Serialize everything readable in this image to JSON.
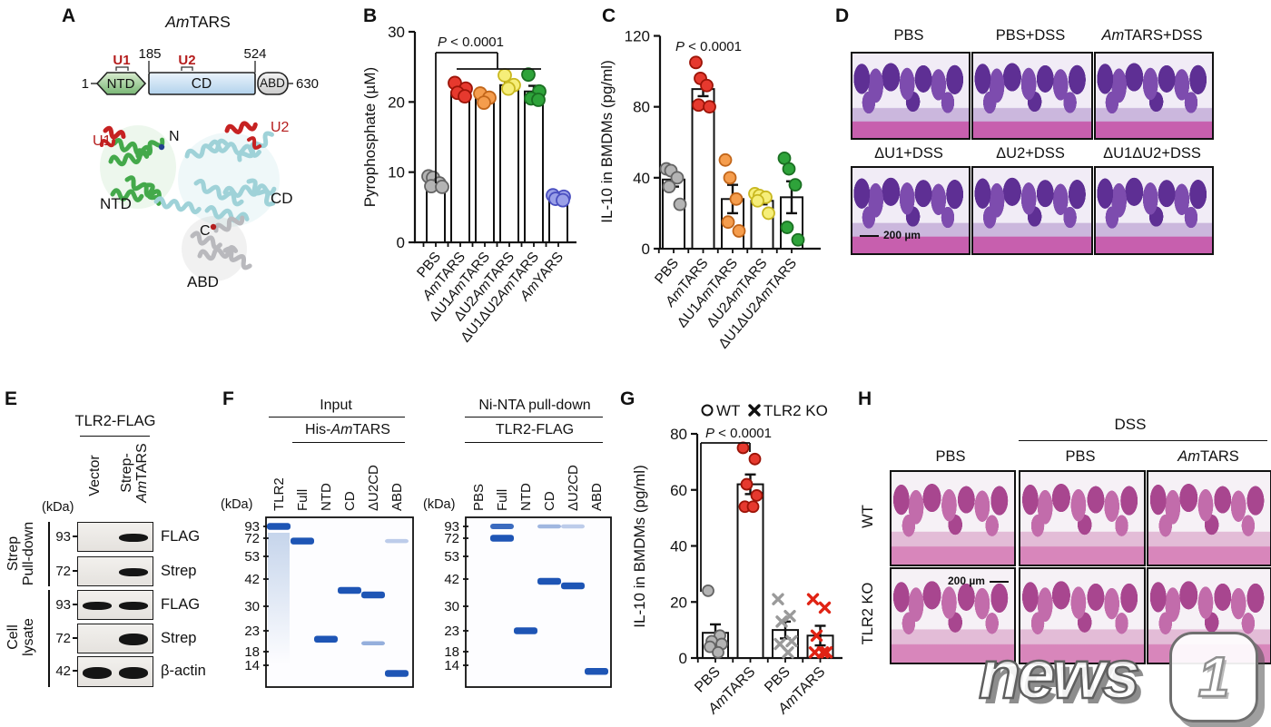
{
  "panel_a": {
    "label": "A",
    "title": [
      {
        "i": "Am"
      },
      "TARS"
    ],
    "u1": "U1",
    "u2": "U2",
    "res_start": "1",
    "res_185": "185",
    "res_524": "524",
    "res_end": "630",
    "ntd": "NTD",
    "cd": "CD",
    "abd": "ABD",
    "struct": {
      "u1": "U1",
      "n": "N",
      "u2": "U2",
      "ntd": "NTD",
      "cd": "CD",
      "c": "C",
      "abd": "ABD"
    }
  },
  "panel_b": {
    "label": "B"
  },
  "panel_c": {
    "label": "C"
  },
  "panel_d": {
    "label": "D",
    "titles": [
      [
        "PBS"
      ],
      [
        "PBS+DSS"
      ],
      [
        {
          "i": "Am"
        },
        "TARS+DSS"
      ],
      [
        "ΔU1+DSS"
      ],
      [
        "ΔU2+DSS"
      ],
      [
        "ΔU1ΔU2+DSS"
      ]
    ],
    "scale_bar": "200 µm"
  },
  "panel_e": {
    "label": "E",
    "header": "TLR2-FLAG",
    "kda": "(kDa)",
    "lanes": {
      "vector": "Vector",
      "strep_line1": "Strep-",
      "strep_line2": [
        {
          "i": "Am"
        },
        "TARS"
      ]
    },
    "groups": [
      [
        "Strep",
        "Pull-down"
      ],
      [
        "Cell",
        "lysate"
      ]
    ],
    "strips": [
      {
        "marker": "93",
        "antibody": "FLAG",
        "bands": [
          0,
          1
        ]
      },
      {
        "marker": "72",
        "antibody": "Strep",
        "bands": [
          0,
          1
        ]
      },
      {
        "marker": "93",
        "antibody": "FLAG",
        "bands": [
          1,
          1
        ]
      },
      {
        "marker": "72",
        "antibody": "Strep",
        "bands": [
          0,
          1.4
        ]
      },
      {
        "marker": "42",
        "antibody": "β-actin",
        "bands": [
          1.2,
          1.2
        ]
      }
    ]
  },
  "panel_f": {
    "label": "F",
    "kda": "(kDa)",
    "gels": [
      {
        "header1": "Input",
        "header2": [
          "His-",
          {
            "i": "Am"
          },
          "TARS"
        ],
        "lanes": [
          "TLR2",
          "Full",
          "NTD",
          "CD",
          "ΔU2CD",
          "ABD"
        ],
        "markers": [
          93,
          72,
          53,
          42,
          30,
          23,
          18,
          14
        ],
        "bands": [
          {
            "lane": 0,
            "kda": 93,
            "intensity": 1,
            "smear": true
          },
          {
            "lane": 1,
            "kda": 69,
            "intensity": 1
          },
          {
            "lane": 2,
            "kda": 21,
            "intensity": 1
          },
          {
            "lane": 3,
            "kda": 37,
            "intensity": 1
          },
          {
            "lane": 4,
            "kda": 35,
            "intensity": 1
          },
          {
            "lane": 4,
            "kda": 20,
            "intensity": 0.35
          },
          {
            "lane": 5,
            "kda": 12,
            "intensity": 1
          },
          {
            "lane": 5,
            "kda": 69,
            "intensity": 0.15
          }
        ]
      },
      {
        "header1": "Ni-NTA pull-down",
        "header2": "TLR2-FLAG",
        "lanes": [
          "PBS",
          "Full",
          "NTD",
          "CD",
          "ΔU2CD",
          "ABD"
        ],
        "markers": [
          93,
          72,
          53,
          42,
          30,
          23,
          18,
          14
        ],
        "bands": [
          {
            "lane": 1,
            "kda": 93,
            "intensity": 0.8
          },
          {
            "lane": 1,
            "kda": 72,
            "intensity": 1
          },
          {
            "lane": 2,
            "kda": 23,
            "intensity": 1
          },
          {
            "lane": 3,
            "kda": 41,
            "intensity": 1
          },
          {
            "lane": 3,
            "kda": 93,
            "intensity": 0.3
          },
          {
            "lane": 4,
            "kda": 39,
            "intensity": 1
          },
          {
            "lane": 4,
            "kda": 93,
            "intensity": 0.15
          },
          {
            "lane": 5,
            "kda": 12.5,
            "intensity": 1
          }
        ]
      }
    ]
  },
  "panel_g": {
    "label": "G"
  },
  "panel_h": {
    "label": "H",
    "dss": "DSS",
    "col_titles": [
      [
        "PBS"
      ],
      [
        "PBS"
      ],
      [
        {
          "i": "Am"
        },
        "TARS"
      ]
    ],
    "row_labels": [
      "WT",
      "TLR2 KO"
    ],
    "scale_bar": "200 µm"
  },
  "watermark": {
    "news": "news",
    "one": "1"
  },
  "chart_data": [
    {
      "id": "B",
      "type": "bar",
      "title": "",
      "xlabel": "",
      "ylabel": "Pyrophosphate (µM)",
      "ylim": [
        0,
        30
      ],
      "yticks": [
        0,
        10,
        20,
        30
      ],
      "p_label": [
        {
          "i": "P"
        },
        " < 0.0001"
      ],
      "categories": [
        [
          "PBS"
        ],
        [
          {
            "i": "Am"
          },
          "TARS"
        ],
        [
          "ΔU1",
          {
            "i": "Am"
          },
          "TARS"
        ],
        [
          "ΔU2",
          {
            "i": "Am"
          },
          "TARS"
        ],
        [
          "ΔU1ΔU2",
          {
            "i": "Am"
          },
          "TARS"
        ],
        [
          {
            "i": "Am"
          },
          "YARS"
        ]
      ],
      "means": [
        8.6,
        21.4,
        20.4,
        22.4,
        21.5,
        6.3
      ],
      "sem": [
        0.5,
        0.5,
        0.4,
        0.4,
        0.8,
        0.3
      ],
      "points": [
        [
          9.4,
          9.2,
          8.4,
          8.0,
          7.9
        ],
        [
          22.7,
          21.9,
          21.3,
          20.8
        ],
        [
          21.2,
          20.6,
          19.9
        ],
        [
          23.8,
          22.4,
          21.9
        ],
        [
          23.9,
          21.5,
          20.5,
          20.3
        ],
        [
          6.7,
          6.5,
          6.2,
          6.0
        ]
      ],
      "point_fill": [
        "#b4b4b4",
        "#e6392e",
        "#f59d4d",
        "#f6ee79",
        "#2ea33a",
        "#9aa0e8"
      ],
      "point_edge": [
        "#636363",
        "#9c1408",
        "#c2661a",
        "#c9b820",
        "#1a6f22",
        "#4a4fc0"
      ]
    },
    {
      "id": "C",
      "type": "bar",
      "title": "",
      "xlabel": "",
      "ylabel": "IL-10 in BMDMs (pg/ml)",
      "ylim": [
        0,
        120
      ],
      "yticks": [
        0,
        40,
        80,
        120
      ],
      "p_label": [
        {
          "i": "P"
        },
        " < 0.0001"
      ],
      "categories": [
        [
          "PBS"
        ],
        [
          {
            "i": "Am"
          },
          "TARS"
        ],
        [
          "ΔU1",
          {
            "i": "Am"
          },
          "TARS"
        ],
        [
          "ΔU2",
          {
            "i": "Am"
          },
          "TARS"
        ],
        [
          "ΔU1ΔU2",
          {
            "i": "Am"
          },
          "TARS"
        ]
      ],
      "means": [
        39,
        90,
        28,
        27,
        29
      ],
      "sem": [
        4,
        4,
        8,
        2,
        9
      ],
      "points": [
        [
          45,
          44,
          40,
          35,
          25
        ],
        [
          105,
          96,
          92,
          81,
          80
        ],
        [
          50,
          40,
          28,
          15,
          10
        ],
        [
          31,
          30,
          29,
          27,
          20
        ],
        [
          51,
          45,
          36,
          12,
          5
        ]
      ],
      "point_fill": [
        "#b4b4b4",
        "#e6392e",
        "#f59d4d",
        "#f6ee79",
        "#2ea33a"
      ],
      "point_edge": [
        "#636363",
        "#9c1408",
        "#c2661a",
        "#c9b820",
        "#1a6f22"
      ]
    },
    {
      "id": "G",
      "type": "bar",
      "title": "",
      "xlabel": "",
      "ylabel": "IL-10 in BMDMs (pg/ml)",
      "ylim": [
        0,
        80
      ],
      "yticks": [
        0,
        20,
        40,
        60,
        80
      ],
      "p_label": [
        {
          "i": "P"
        },
        " < 0.0001"
      ],
      "legend": {
        "wt": "WT",
        "ko": "TLR2 KO"
      },
      "categories": [
        [
          "PBS"
        ],
        [
          {
            "i": "Am"
          },
          "TARS"
        ],
        [
          "PBS"
        ],
        [
          {
            "i": "Am"
          },
          "TARS"
        ]
      ],
      "markers": [
        "circle",
        "circle",
        "x",
        "x"
      ],
      "means": [
        9,
        62,
        10,
        8
      ],
      "sem": [
        3,
        3.5,
        3,
        3.5
      ],
      "points": [
        [
          24,
          8,
          6,
          5,
          4,
          2
        ],
        [
          75,
          71,
          62,
          58,
          54,
          54
        ],
        [
          21,
          15,
          13,
          6,
          5,
          2
        ],
        [
          21,
          18,
          8,
          2,
          2,
          2
        ]
      ],
      "point_fill": [
        "#b4b4b4",
        "#e6392e",
        "#9a9a9a",
        "#e02314"
      ],
      "point_edge": [
        "#636363",
        "#9c1408",
        "#6e6e6e",
        "#9c1408"
      ]
    }
  ]
}
